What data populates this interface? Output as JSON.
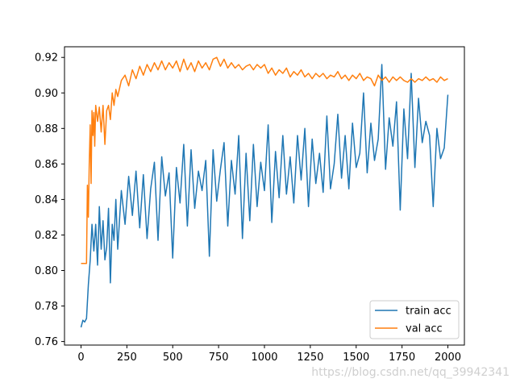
{
  "chart_data": {
    "type": "line",
    "title": "",
    "xlabel": "",
    "ylabel": "",
    "xlim": [
      -90,
      2090
    ],
    "ylim": [
      0.758,
      0.926
    ],
    "xticks": [
      0,
      250,
      500,
      750,
      1000,
      1250,
      1500,
      1750,
      2000
    ],
    "yticks": [
      0.76,
      0.78,
      0.8,
      0.82,
      0.84,
      0.86,
      0.88,
      0.9,
      0.92
    ],
    "grid": false,
    "legend_position": "lower-right",
    "series": [
      {
        "name": "train acc",
        "color": "#1f77b4",
        "x": [
          0,
          10,
          20,
          30,
          40,
          50,
          60,
          70,
          80,
          90,
          100,
          110,
          120,
          130,
          140,
          150,
          160,
          170,
          180,
          190,
          200,
          220,
          240,
          260,
          280,
          300,
          320,
          340,
          360,
          380,
          400,
          420,
          440,
          460,
          480,
          500,
          520,
          540,
          560,
          580,
          600,
          620,
          640,
          660,
          680,
          700,
          720,
          740,
          760,
          780,
          800,
          820,
          840,
          860,
          880,
          900,
          920,
          940,
          960,
          980,
          1000,
          1020,
          1040,
          1060,
          1080,
          1100,
          1120,
          1140,
          1160,
          1180,
          1200,
          1220,
          1240,
          1260,
          1280,
          1300,
          1320,
          1340,
          1360,
          1380,
          1400,
          1420,
          1440,
          1460,
          1480,
          1500,
          1520,
          1540,
          1560,
          1580,
          1600,
          1620,
          1640,
          1660,
          1680,
          1700,
          1720,
          1740,
          1760,
          1780,
          1800,
          1820,
          1840,
          1860,
          1880,
          1900,
          1920,
          1940,
          1960,
          1980,
          2000
        ],
        "values": [
          0.768,
          0.772,
          0.771,
          0.773,
          0.792,
          0.806,
          0.826,
          0.811,
          0.826,
          0.803,
          0.836,
          0.812,
          0.828,
          0.806,
          0.813,
          0.835,
          0.793,
          0.826,
          0.817,
          0.84,
          0.812,
          0.845,
          0.826,
          0.853,
          0.831,
          0.856,
          0.824,
          0.854,
          0.818,
          0.846,
          0.861,
          0.817,
          0.864,
          0.842,
          0.855,
          0.807,
          0.858,
          0.838,
          0.871,
          0.825,
          0.868,
          0.835,
          0.856,
          0.845,
          0.862,
          0.808,
          0.868,
          0.839,
          0.857,
          0.872,
          0.825,
          0.862,
          0.843,
          0.876,
          0.818,
          0.866,
          0.828,
          0.871,
          0.836,
          0.861,
          0.845,
          0.882,
          0.827,
          0.867,
          0.841,
          0.876,
          0.843,
          0.864,
          0.838,
          0.876,
          0.851,
          0.88,
          0.836,
          0.874,
          0.849,
          0.866,
          0.844,
          0.887,
          0.846,
          0.86,
          0.888,
          0.852,
          0.876,
          0.846,
          0.883,
          0.858,
          0.866,
          0.9,
          0.855,
          0.883,
          0.862,
          0.874,
          0.916,
          0.857,
          0.886,
          0.87,
          0.895,
          0.834,
          0.891,
          0.863,
          0.911,
          0.858,
          0.897,
          0.872,
          0.884,
          0.876,
          0.836,
          0.88,
          0.863,
          0.869,
          0.899
        ]
      },
      {
        "name": "val acc",
        "color": "#ff7f0e",
        "x": [
          0,
          20,
          30,
          35,
          40,
          45,
          50,
          55,
          60,
          65,
          70,
          75,
          80,
          90,
          100,
          110,
          120,
          130,
          140,
          150,
          160,
          170,
          180,
          190,
          200,
          220,
          240,
          260,
          280,
          300,
          320,
          340,
          360,
          380,
          400,
          420,
          440,
          460,
          480,
          500,
          520,
          540,
          560,
          580,
          600,
          620,
          640,
          660,
          680,
          700,
          720,
          740,
          760,
          780,
          800,
          820,
          840,
          860,
          880,
          900,
          920,
          940,
          960,
          980,
          1000,
          1020,
          1040,
          1060,
          1080,
          1100,
          1120,
          1140,
          1160,
          1180,
          1200,
          1220,
          1240,
          1260,
          1280,
          1300,
          1320,
          1340,
          1360,
          1380,
          1400,
          1420,
          1440,
          1460,
          1480,
          1500,
          1520,
          1540,
          1560,
          1580,
          1600,
          1620,
          1640,
          1660,
          1680,
          1700,
          1720,
          1740,
          1760,
          1780,
          1800,
          1820,
          1840,
          1860,
          1880,
          1900,
          1920,
          1940,
          1960,
          1980,
          2000
        ],
        "values": [
          0.804,
          0.804,
          0.804,
          0.848,
          0.83,
          0.86,
          0.882,
          0.849,
          0.89,
          0.876,
          0.889,
          0.87,
          0.893,
          0.884,
          0.892,
          0.878,
          0.893,
          0.871,
          0.89,
          0.893,
          0.885,
          0.9,
          0.893,
          0.902,
          0.898,
          0.907,
          0.91,
          0.904,
          0.913,
          0.908,
          0.915,
          0.91,
          0.916,
          0.912,
          0.917,
          0.913,
          0.918,
          0.913,
          0.917,
          0.914,
          0.918,
          0.912,
          0.919,
          0.913,
          0.917,
          0.912,
          0.918,
          0.914,
          0.917,
          0.913,
          0.919,
          0.92,
          0.915,
          0.919,
          0.914,
          0.917,
          0.914,
          0.916,
          0.913,
          0.915,
          0.916,
          0.913,
          0.916,
          0.914,
          0.916,
          0.911,
          0.914,
          0.91,
          0.913,
          0.911,
          0.914,
          0.909,
          0.912,
          0.91,
          0.913,
          0.909,
          0.911,
          0.908,
          0.911,
          0.909,
          0.911,
          0.908,
          0.91,
          0.909,
          0.912,
          0.908,
          0.91,
          0.907,
          0.91,
          0.908,
          0.911,
          0.907,
          0.909,
          0.908,
          0.904,
          0.91,
          0.907,
          0.909,
          0.906,
          0.909,
          0.907,
          0.909,
          0.907,
          0.906,
          0.908,
          0.906,
          0.908,
          0.907,
          0.909,
          0.907,
          0.908,
          0.906,
          0.909,
          0.907,
          0.908
        ]
      }
    ]
  },
  "watermark": "https://blog.csdn.net/qq_39942341"
}
